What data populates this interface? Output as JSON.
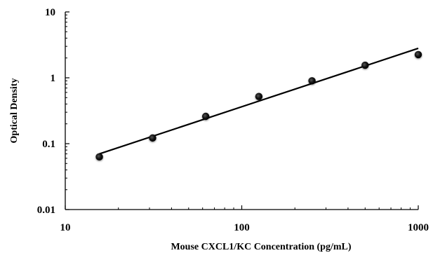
{
  "chart_data": {
    "type": "scatter",
    "xlabel": "Mouse CXCL1/KC Concentration (pg/mL)",
    "ylabel": "Optical  Density",
    "x_scale": "log",
    "y_scale": "log",
    "xlim": [
      10,
      1000
    ],
    "ylim": [
      0.01,
      10
    ],
    "x_ticks": [
      {
        "value": 10,
        "label": "10"
      },
      {
        "value": 100,
        "label": "100"
      },
      {
        "value": 1000,
        "label": "1000"
      }
    ],
    "y_ticks": [
      {
        "value": 10,
        "label": "10"
      },
      {
        "value": 1,
        "label": "1"
      },
      {
        "value": 0.1,
        "label": "0.1"
      },
      {
        "value": 0.01,
        "label": "0.01"
      }
    ],
    "grid": false,
    "legend": "none",
    "points": [
      {
        "x": 15.6,
        "y": 0.063
      },
      {
        "x": 31.25,
        "y": 0.122
      },
      {
        "x": 62.5,
        "y": 0.26
      },
      {
        "x": 125,
        "y": 0.52
      },
      {
        "x": 250,
        "y": 0.9
      },
      {
        "x": 500,
        "y": 1.55
      },
      {
        "x": 1000,
        "y": 2.25
      }
    ],
    "trendline": {
      "x": [
        15.6,
        1000
      ],
      "y": [
        0.07,
        2.8
      ]
    },
    "colors": {
      "marker": "#000000",
      "line": "#000000",
      "axis": "#000000"
    }
  }
}
